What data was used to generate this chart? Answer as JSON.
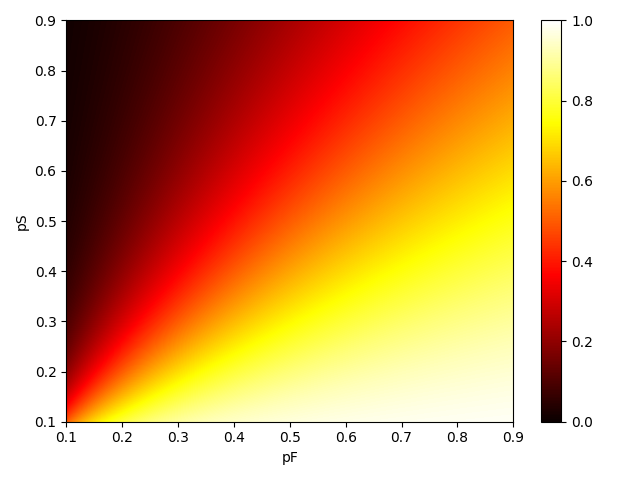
{
  "p_min": 0.1,
  "p_max": 0.9,
  "n_points": 200,
  "xlabel": "pF",
  "ylabel": "pS",
  "colormap": "hot",
  "vmin": 0.0,
  "vmax": 1.0,
  "colorbar_ticks": [
    0.0,
    0.2,
    0.4,
    0.6,
    0.8,
    1.0
  ],
  "figsize": [
    6.4,
    4.8
  ],
  "dpi": 100
}
